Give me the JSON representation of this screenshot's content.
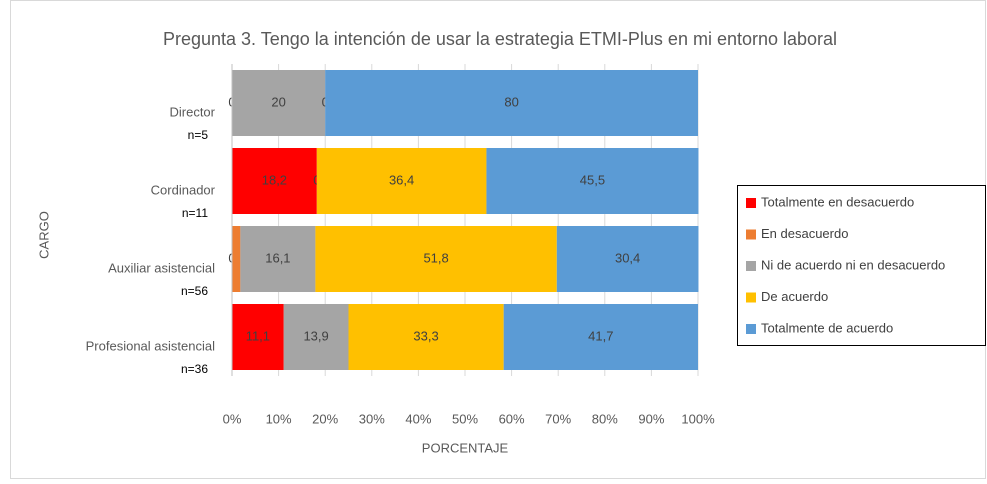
{
  "chart_data": {
    "type": "stacked_barh",
    "title": "Pregunta 3. Tengo la intención de usar la estrategia ETMI-Plus en mi entorno laboral",
    "xlabel": "PORCENTAJE",
    "ylabel": "CARGO",
    "categories": [
      "Director",
      "Cordinador",
      "Auxiliar asistencial",
      "Profesional asistencial"
    ],
    "category_notes": [
      "n=5",
      "n=11",
      "n=56",
      "n=36"
    ],
    "series": [
      {
        "name": "Totalmente en desacuerdo",
        "color": "#ff0000",
        "values": [
          0,
          18.2,
          0,
          11.1
        ],
        "value_labels": [
          "0",
          "18,2",
          "0",
          "11,1"
        ]
      },
      {
        "name": "En desacuerdo",
        "color": "#ed7d31",
        "values": [
          0,
          0,
          1.8,
          0
        ],
        "value_labels": [
          null,
          "0",
          null,
          null
        ]
      },
      {
        "name": "Ni de acuerdo ni en desacuerdo",
        "color": "#a5a5a5",
        "values": [
          20,
          0,
          16.1,
          13.9
        ],
        "value_labels": [
          "20",
          null,
          "16,1",
          "13,9"
        ]
      },
      {
        "name": "De acuerdo",
        "color": "#ffc000",
        "values": [
          0,
          36.4,
          51.8,
          33.3
        ],
        "value_labels": [
          "0",
          "36,4",
          "51,8",
          "33,3"
        ]
      },
      {
        "name": "Totalmente de acuerdo",
        "color": "#5b9bd5",
        "values": [
          80,
          45.5,
          30.4,
          41.7
        ],
        "value_labels": [
          "80",
          "45,5",
          "30,4",
          "41,7"
        ]
      }
    ],
    "xlim": [
      0,
      100
    ],
    "xticks": [
      {
        "value": 0,
        "label": "0%"
      },
      {
        "value": 10,
        "label": "10%"
      },
      {
        "value": 20,
        "label": "20%"
      },
      {
        "value": 30,
        "label": "30%"
      },
      {
        "value": 40,
        "label": "40%"
      },
      {
        "value": 50,
        "label": "50%"
      },
      {
        "value": 60,
        "label": "60%"
      },
      {
        "value": 70,
        "label": "70%"
      },
      {
        "value": 80,
        "label": "80%"
      },
      {
        "value": 90,
        "label": "90%"
      },
      {
        "value": 100,
        "label": "100%"
      }
    ],
    "grid": true,
    "legend": "right"
  }
}
